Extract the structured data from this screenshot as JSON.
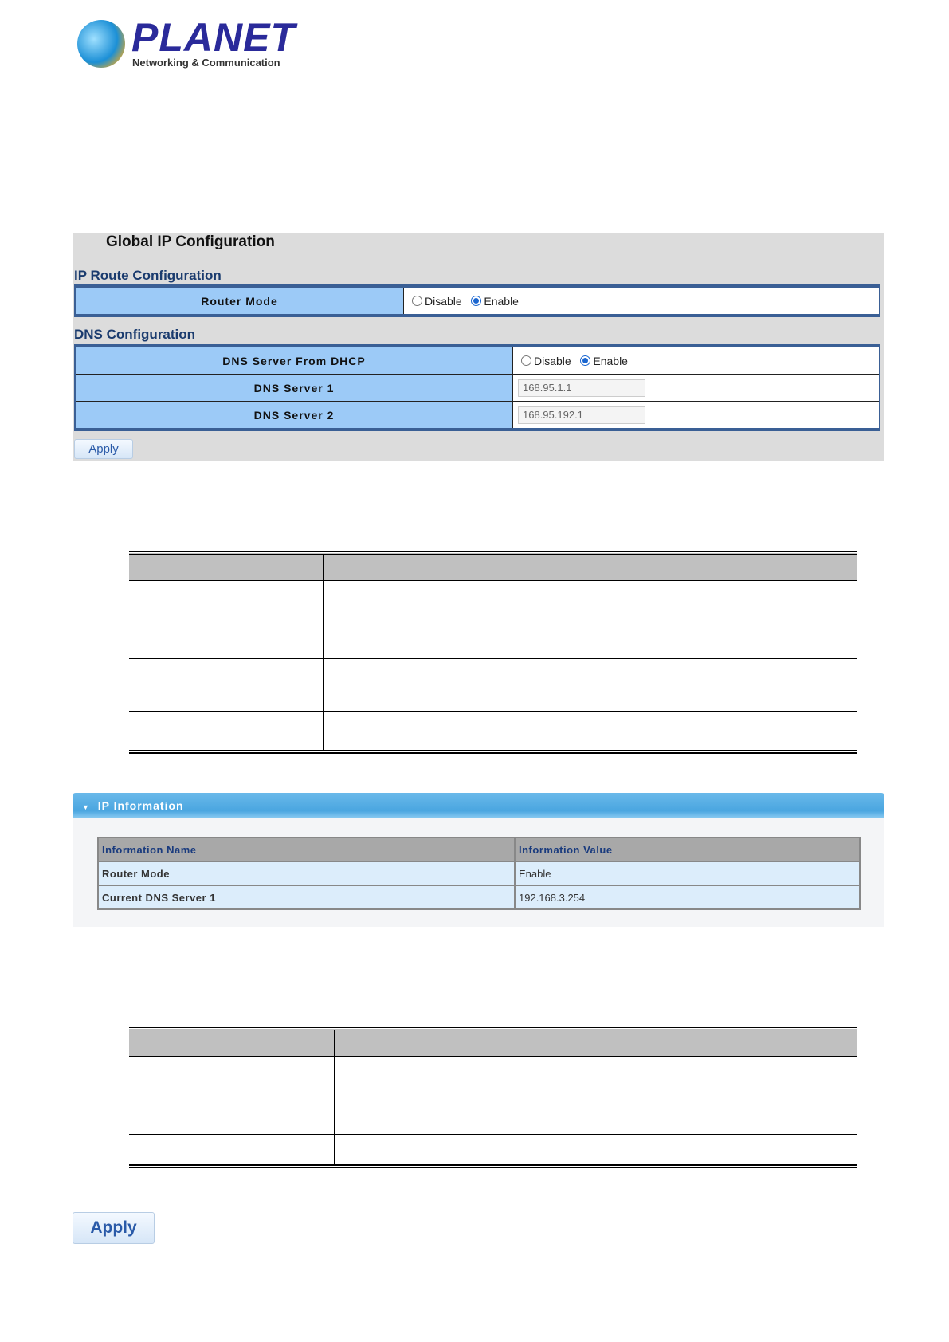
{
  "logo": {
    "brand": "PLANET",
    "tagline": "Networking & Communication"
  },
  "config": {
    "title": "Global IP Configuration",
    "ip_route": {
      "heading": "IP Route Configuration",
      "router_mode": {
        "label": "Router Mode",
        "options": [
          "Disable",
          "Enable"
        ],
        "selected": "Enable"
      }
    },
    "dns": {
      "heading": "DNS Configuration",
      "from_dhcp": {
        "label": "DNS Server From DHCP",
        "options": [
          "Disable",
          "Enable"
        ],
        "selected": "Enable"
      },
      "server1": {
        "label": "DNS Server 1",
        "value": "168.95.1.1"
      },
      "server2": {
        "label": "DNS Server 2",
        "value": "168.95.192.1"
      }
    },
    "apply_label": "Apply"
  },
  "ip_info": {
    "title": "IP Information",
    "columns": [
      "Information Name",
      "Information Value"
    ],
    "rows": [
      [
        "Router Mode",
        "Enable"
      ],
      [
        "Current DNS Server 1",
        "192.168.3.254"
      ]
    ]
  },
  "bottom_apply_label": "Apply"
}
